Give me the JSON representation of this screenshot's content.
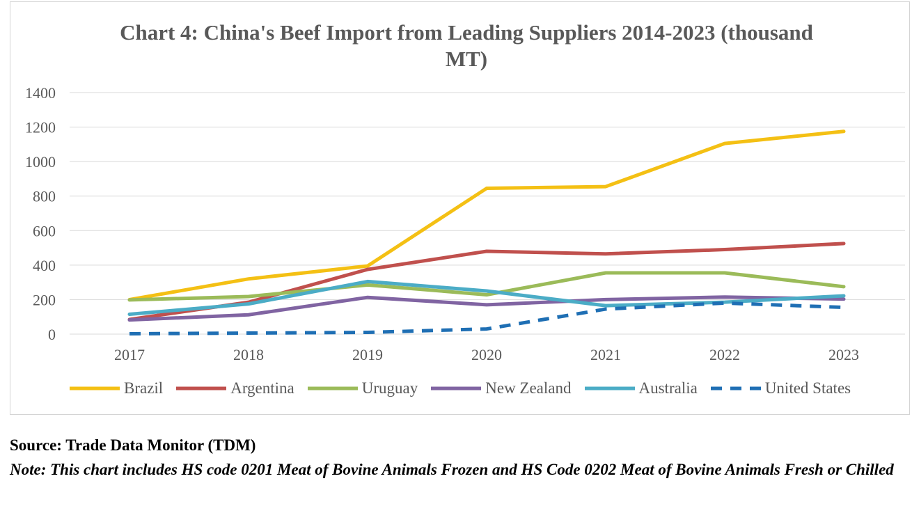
{
  "title_line1": "Chart 4: China's Beef Import from Leading Suppliers 2014-2023 (thousand",
  "title_line2": "MT)",
  "source": "Source: Trade Data Monitor (TDM)",
  "note": "Note: This chart includes HS code 0201 Meat of Bovine Animals Frozen and HS Code 0202 Meat of Bovine Animals Fresh or Chilled",
  "chart_data": {
    "type": "line",
    "title": "Chart 4: China's Beef Import from Leading Suppliers 2014-2023 (thousand MT)",
    "xlabel": "",
    "ylabel": "",
    "categories": [
      "2017",
      "2018",
      "2019",
      "2020",
      "2021",
      "2022",
      "2023"
    ],
    "ylim": [
      0,
      1400
    ],
    "yticks": [
      "0",
      "200",
      "400",
      "600",
      "800",
      "1000",
      "1200",
      "1400"
    ],
    "grid": "horizontal",
    "legend": "bottom",
    "series": [
      {
        "name": "Brazil",
        "color": "#F4C014",
        "dashed": false,
        "values": [
          200,
          320,
          395,
          845,
          855,
          1105,
          1175
        ]
      },
      {
        "name": "Argentina",
        "color": "#C0504D",
        "dashed": false,
        "values": [
          85,
          185,
          375,
          480,
          465,
          490,
          525
        ]
      },
      {
        "name": "Uruguay",
        "color": "#9BBB59",
        "dashed": false,
        "values": [
          198,
          218,
          285,
          228,
          355,
          355,
          275
        ]
      },
      {
        "name": "New Zealand",
        "color": "#8064A2",
        "dashed": false,
        "values": [
          82,
          112,
          213,
          170,
          200,
          215,
          203
        ]
      },
      {
        "name": "Australia",
        "color": "#4BACC6",
        "dashed": false,
        "values": [
          115,
          175,
          305,
          250,
          165,
          185,
          222
        ]
      },
      {
        "name": "United States",
        "color": "#1F6FB4",
        "dashed": true,
        "values": [
          2,
          6,
          10,
          30,
          145,
          180,
          155
        ]
      }
    ]
  }
}
